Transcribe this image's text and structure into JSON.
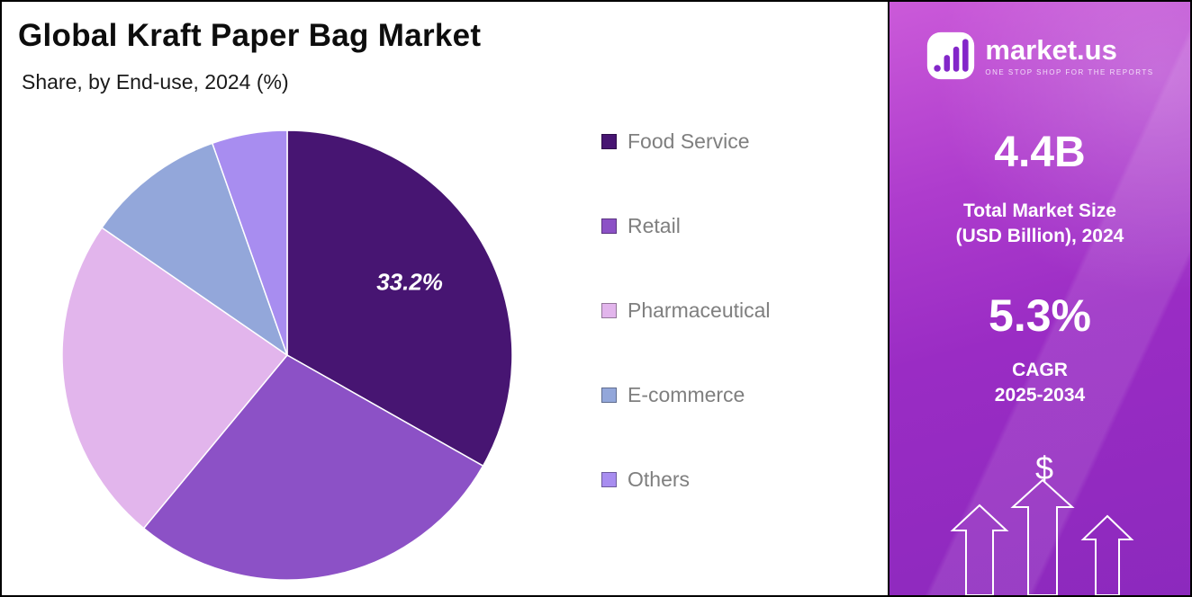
{
  "header": {
    "title": "Global Kraft Paper Bag Market",
    "subtitle": "Share, by End-use, 2024 (%)"
  },
  "chart_data": {
    "type": "pie",
    "title": "Global Kraft Paper Bag Market",
    "subtitle": "Share, by End-use, 2024 (%)",
    "unit": "%",
    "direction": "clockwise",
    "start_angle_deg": 0,
    "labels": [
      "Food Service",
      "Retail",
      "Pharmaceutical",
      "E-commerce",
      "Others"
    ],
    "values": [
      33.2,
      27.8,
      23.6,
      10.0,
      5.4
    ],
    "colors": [
      "#471572",
      "#8c51c6",
      "#e2b5ec",
      "#93a7da",
      "#a88df0"
    ],
    "data_labels": [
      {
        "label": "Food Service",
        "text": "33.2%"
      }
    ],
    "legend_position": "right"
  },
  "sidebar": {
    "brand_name": "market.us",
    "brand_tagline": "ONE STOP SHOP FOR THE REPORTS",
    "stat1_value": "4.4B",
    "stat1_label_line1": "Total Market Size",
    "stat1_label_line2": "(USD Billion), 2024",
    "stat2_value": "5.3%",
    "stat2_label_line1": "CAGR",
    "stat2_label_line2": "2025-2034",
    "dollar_symbol": "$",
    "accent_colors": {
      "panel_top": "#cb5ad9",
      "panel_bottom": "#8c29bd",
      "logo_bar": "#8326c9"
    }
  }
}
